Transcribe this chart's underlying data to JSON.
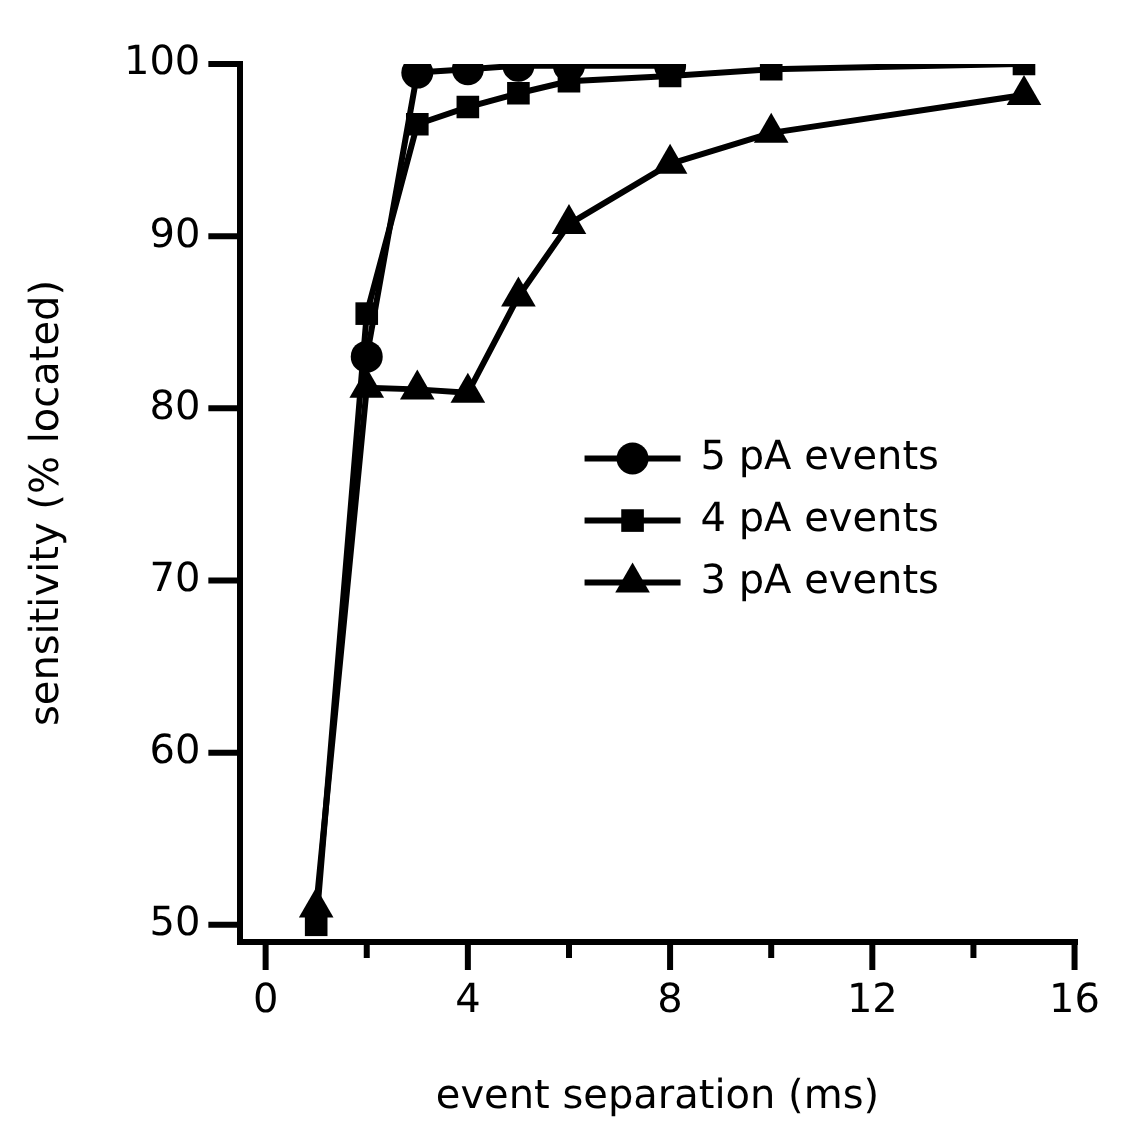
{
  "chart_data": {
    "type": "line",
    "xlabel": "event separation (ms)",
    "ylabel": "sensitivity (% located)",
    "x": [
      1,
      2,
      3,
      4,
      5,
      6,
      8,
      10,
      15
    ],
    "series": [
      {
        "name": "5 pA events",
        "color": "#000000",
        "marker": "circle",
        "values": [
          null,
          83,
          99.5,
          99.7,
          99.9,
          99.9,
          99.9,
          null,
          null
        ]
      },
      {
        "name": "4 pA events",
        "color": "#000000",
        "marker": "square",
        "values": [
          50,
          85.5,
          96.5,
          97.5,
          98.3,
          99,
          99.3,
          99.7,
          100
        ]
      },
      {
        "name": "3 pA events",
        "color": "#000000",
        "marker": "triangle",
        "values": [
          51,
          81.2,
          81.1,
          80.9,
          86.5,
          90.7,
          94.2,
          96,
          98.2
        ]
      }
    ],
    "xlim": [
      -0.5,
      16
    ],
    "xticks": [
      0,
      {
        "value": 2,
        "label": null
      },
      4,
      {
        "value": 6,
        "label": null
      },
      8,
      {
        "value": 10,
        "label": null
      },
      12,
      {
        "value": 14,
        "label": null
      },
      16
    ],
    "ylim": [
      49,
      100
    ],
    "yticks": [
      50,
      60,
      70,
      80,
      90,
      100
    ],
    "grid": false,
    "legend": "right",
    "line_style": "solid"
  }
}
